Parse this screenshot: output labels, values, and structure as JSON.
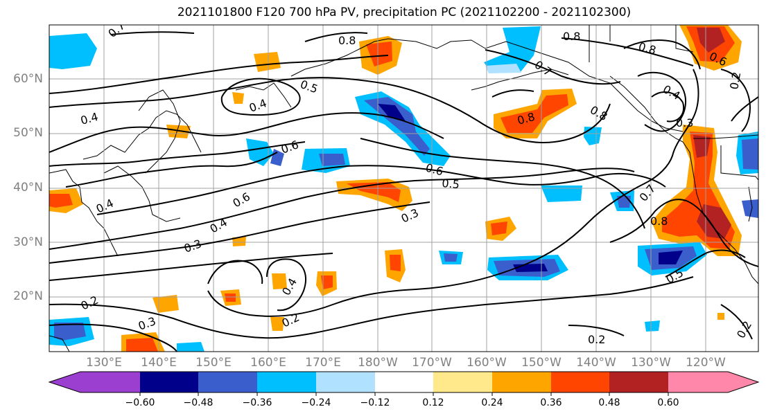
{
  "title": "2021101800 F120 700 hPa PV, precipitation PC (2021102200 - 2021102300)",
  "lat_labels": [
    "60°N",
    "50°N",
    "40°N",
    "30°N",
    "20°N"
  ],
  "lon_labels": [
    "130°E",
    "140°E",
    "150°E",
    "160°E",
    "170°E",
    "180°W",
    "170°W",
    "160°W",
    "150°W",
    "140°W",
    "130°W",
    "120°W"
  ],
  "contour_labels": [
    "0.7",
    "0.8",
    "0.8",
    "0.7",
    "0.8",
    "0.6",
    "0.5",
    "0.4",
    "0.4",
    "0.8",
    "0.8",
    "0.3",
    "0.4",
    "0.6",
    "0.6",
    "0.5",
    "0.6",
    "0.4",
    "0.3",
    "0.3",
    "0.7",
    "0.8",
    "0.5",
    "0.4",
    "0.2",
    "0.3",
    "0.2",
    "0.2",
    "0.4",
    "0.2",
    "0.2"
  ],
  "colorbar": {
    "ticks": [
      "−0.60",
      "−0.48",
      "−0.36",
      "−0.24",
      "−0.12",
      "0.12",
      "0.24",
      "0.36",
      "0.48",
      "0.60"
    ],
    "colors": [
      "#9a3fd0",
      "#00008b",
      "#3a5fcd",
      "#00bfff",
      "#b0e2ff",
      "#ffffff",
      "#ffe98a",
      "#ffa500",
      "#ff4500",
      "#b22222",
      "#ff88aa"
    ]
  }
}
